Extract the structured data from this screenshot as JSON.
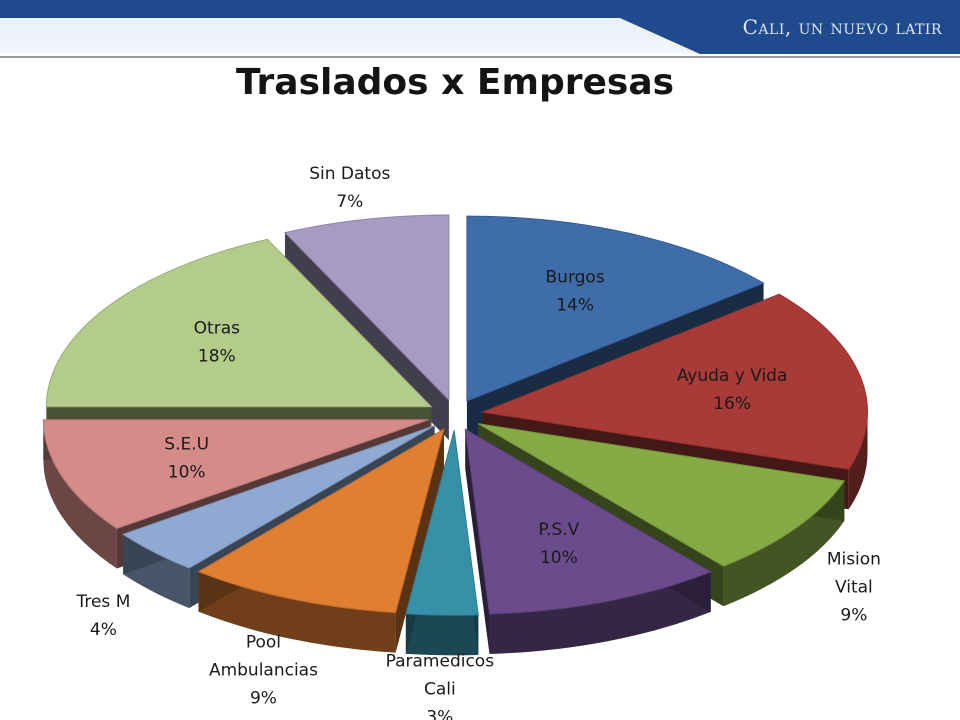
{
  "header": {
    "brand": "Cali, un nuevo latir"
  },
  "colors": {
    "banner": "#1f4b8e"
  },
  "chart_data": {
    "type": "pie",
    "title": "Traslados x Empresas",
    "value_unit": "%",
    "three_d": true,
    "exploded": true,
    "slices": [
      {
        "label": "Burgos",
        "value": 14,
        "color": "#3e6daa",
        "label_inside": true
      },
      {
        "label": "Ayuda y Vida",
        "value": 16,
        "color": "#a83b38",
        "label_inside": true
      },
      {
        "label": "Mision Vital",
        "value": 9,
        "color": "#86aa45",
        "label_inside": false
      },
      {
        "label": "P.S.V",
        "value": 10,
        "color": "#6a4b8c",
        "label_inside": true
      },
      {
        "label": "Paramedicos Cali",
        "value": 3,
        "color": "#3690a8",
        "label_inside": false
      },
      {
        "label": "Pool Ambulancias",
        "value": 9,
        "color": "#e07e32",
        "label_inside": false
      },
      {
        "label": "Tres   M",
        "value": 4,
        "color": "#8fa9d2",
        "label_inside": false
      },
      {
        "label": "S.E.U",
        "value": 10,
        "color": "#d58c89",
        "label_inside": true
      },
      {
        "label": "Otras",
        "value": 18,
        "color": "#b4cc8a",
        "label_inside": true
      },
      {
        "label": "Sin Datos",
        "value": 7,
        "color": "#a79bc3",
        "label_inside": false
      }
    ]
  }
}
